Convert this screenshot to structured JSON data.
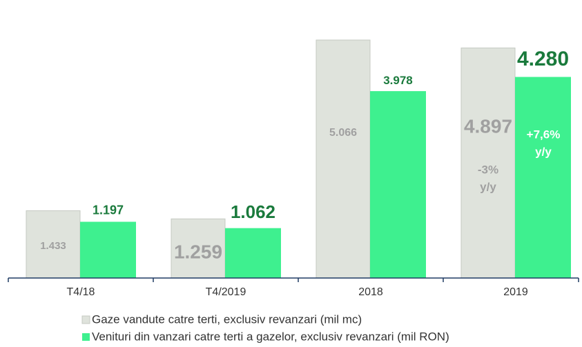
{
  "chart_data": {
    "type": "bar",
    "categories": [
      "T4/18",
      "T4/2019",
      "2018",
      "2019"
    ],
    "series": [
      {
        "name": "Gaze vandute catre terti, exclusiv revanzari (mil mc)",
        "color": "#dfe3dc",
        "values": [
          1433,
          1259,
          5066,
          4897
        ],
        "value_labels": [
          "1.433",
          "1.259",
          "5.066",
          "4.897"
        ]
      },
      {
        "name": "Venituri din vanzari catre terti a gazelor, exclusiv revanzari (mil RON)",
        "color": "#3ef08f",
        "values": [
          1197,
          1062,
          3978,
          4280
        ],
        "value_labels": [
          "1.197",
          "1.062",
          "3.978",
          "4.280"
        ]
      }
    ],
    "annotations": [
      [
        "-3%",
        "y/y"
      ],
      [
        "+7,6%",
        "y/y"
      ]
    ]
  }
}
